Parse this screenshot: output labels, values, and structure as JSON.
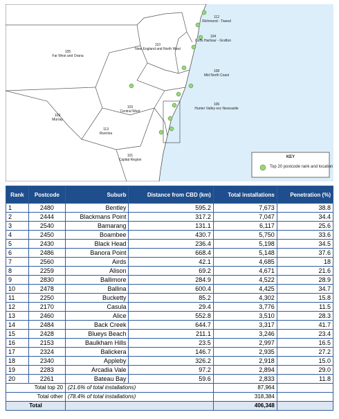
{
  "map": {
    "regions": [
      {
        "code": "112",
        "name": "Richmond - Tweed"
      },
      {
        "code": "104",
        "name": "Coffs Harbour - Grafton"
      },
      {
        "code": "110",
        "name": "New England and North West"
      },
      {
        "code": "108",
        "name": "Mid North Coast"
      },
      {
        "code": "105",
        "name": "Far West and Orana"
      },
      {
        "code": "103",
        "name": "Central West"
      },
      {
        "code": "106",
        "name": "Hunter Valley exc Newcastle"
      },
      {
        "code": "109",
        "name": "Murray"
      },
      {
        "code": "113",
        "name": "Riverina"
      },
      {
        "code": "101",
        "name": "Capital Region"
      }
    ],
    "key": {
      "title": "KEY",
      "label": "Top 20 postcode rank and location"
    }
  },
  "table": {
    "header": [
      "Rank",
      "Postcode",
      "Suburb",
      "Distance from CBD (km)",
      "Total installations",
      "Penetration (%)"
    ],
    "rows": [
      [
        "1",
        "2480",
        "Bentley",
        "595.2",
        "7,673",
        "38.8"
      ],
      [
        "2",
        "2444",
        "Blackmans Point",
        "317.2",
        "7,047",
        "34.4"
      ],
      [
        "3",
        "2540",
        "Bamarang",
        "131.1",
        "6,117",
        "25.6"
      ],
      [
        "4",
        "2450",
        "Boambee",
        "430.7",
        "5,750",
        "33.6"
      ],
      [
        "5",
        "2430",
        "Black Head",
        "236.4",
        "5,198",
        "34.5"
      ],
      [
        "6",
        "2486",
        "Banora Point",
        "668.4",
        "5,148",
        "37.6"
      ],
      [
        "7",
        "2560",
        "Airds",
        "42.1",
        "4,685",
        "18"
      ],
      [
        "8",
        "2259",
        "Alison",
        "69.2",
        "4,671",
        "21.6"
      ],
      [
        "9",
        "2830",
        "Ballimore",
        "284.9",
        "4,522",
        "28.9"
      ],
      [
        "10",
        "2478",
        "Ballina",
        "600.4",
        "4,425",
        "34.7"
      ],
      [
        "11",
        "2250",
        "Bucketty",
        "85.2",
        "4,302",
        "15.8"
      ],
      [
        "12",
        "2170",
        "Casula",
        "29.4",
        "3,776",
        "11.5"
      ],
      [
        "13",
        "2460",
        "Alice",
        "552.8",
        "3,510",
        "28.3"
      ],
      [
        "14",
        "2484",
        "Back Creek",
        "644.7",
        "3,317",
        "41.7"
      ],
      [
        "15",
        "2428",
        "Blueys Beach",
        "211.1",
        "3,246",
        "23.4"
      ],
      [
        "16",
        "2153",
        "Baulkham Hills",
        "23.5",
        "2,997",
        "16.5"
      ],
      [
        "17",
        "2324",
        "Balickera",
        "146.7",
        "2,935",
        "27.2"
      ],
      [
        "18",
        "2340",
        "Appleby",
        "326.2",
        "2,918",
        "15.0"
      ],
      [
        "19",
        "2283",
        "Arcadia Vale",
        "97.2",
        "2,894",
        "29.0"
      ],
      [
        "20",
        "2261",
        "Bateau Bay",
        "59.6",
        "2,833",
        "11.8"
      ]
    ],
    "footer": [
      {
        "label": "Total top 20",
        "note": "(21.6% of total installations)",
        "value": "87,964"
      },
      {
        "label": "Total other",
        "note": "(78.4% of total installations)",
        "value": "318,384"
      },
      {
        "label": "Total",
        "value": "406,348"
      }
    ]
  }
}
